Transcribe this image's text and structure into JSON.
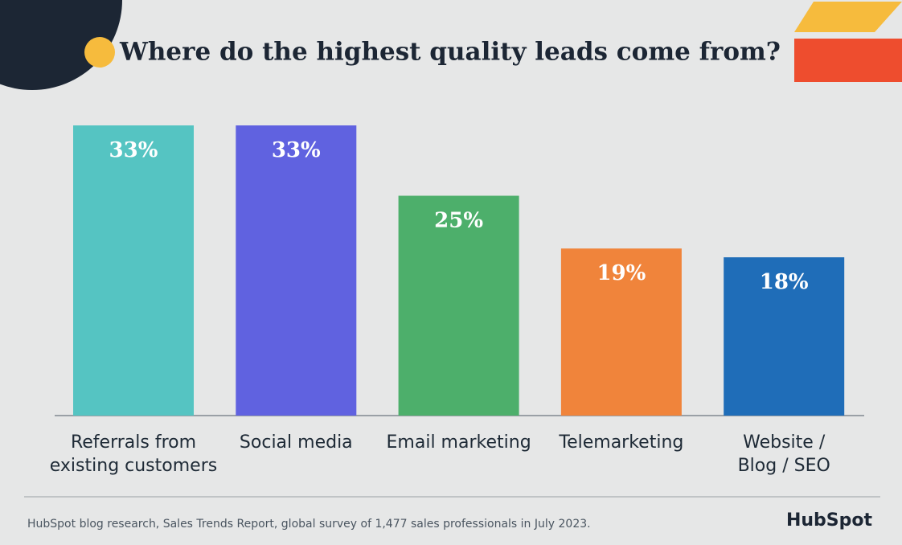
{
  "chart_data": {
    "type": "bar",
    "title": "Where do the highest quality leads come from?",
    "categories": [
      "Referrals from\nexisting customers",
      "Social media",
      "Email marketing",
      "Telemarketing",
      "Website /\nBlog / SEO"
    ],
    "values": [
      33,
      33,
      25,
      19,
      18
    ],
    "value_labels": [
      "33%",
      "33%",
      "25%",
      "19%",
      "18%"
    ],
    "colors": [
      "#55c4c2",
      "#6062e0",
      "#4daf6b",
      "#f0843b",
      "#1f6db8"
    ],
    "source": "HubSpot blog research, Sales Trends Report, global survey of 1,477 sales professionals in July 2023.",
    "logo": "HubSpot"
  }
}
